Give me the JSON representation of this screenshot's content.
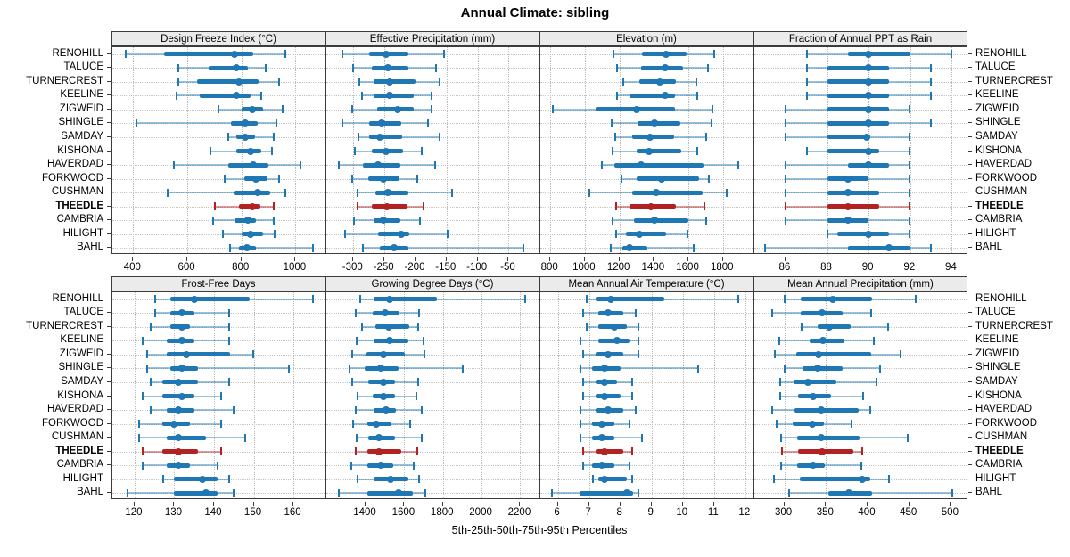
{
  "title": "Annual Climate: sibling",
  "xlabel": "5th-25th-50th-75th-95th Percentiles",
  "highlight_site": "THEEDLE",
  "colors": {
    "series": "#1f77b4",
    "series_light": "rgba(31,119,180,0.45)",
    "highlight": "#b22222",
    "highlight_light": "rgba(178,34,34,0.45)",
    "strip_bg": "#ebebeb",
    "panel_border": "#3c3c3c",
    "grid": "#bdbdbd"
  },
  "chart_data": {
    "type": "percentile-interval dotplot (trellis, 2 rows x 4 cols)",
    "percentiles": [
      5,
      25,
      50,
      75,
      95
    ],
    "legend_note": "each row: thin line = 5th-95th, thick bar = 25th-75th, dot = 50th percentile",
    "sites": [
      "RENOHILL",
      "TALUCE",
      "TURNERCREST",
      "KEELINE",
      "ZIGWEID",
      "SHINGLE",
      "SAMDAY",
      "KISHONA",
      "HAVERDAD",
      "FORKWOOD",
      "CUSHMAN",
      "THEEDLE",
      "CAMBRIA",
      "HILIGHT",
      "BAHL"
    ],
    "panels": [
      {
        "title": "Design Freeze Index (°C)",
        "grid_row": 0,
        "grid_col": 0,
        "xlim": [
          323,
          1114
        ],
        "ticks": [
          400,
          600,
          800,
          1000
        ],
        "tick_labels": [
          "400",
          "600",
          "800",
          "1000"
        ],
        "values": [
          [
            370,
            515,
            775,
            845,
            965
          ],
          [
            565,
            680,
            780,
            825,
            890
          ],
          [
            565,
            635,
            790,
            865,
            940
          ],
          [
            560,
            645,
            780,
            835,
            875
          ],
          [
            715,
            800,
            840,
            880,
            955
          ],
          [
            410,
            760,
            815,
            860,
            930
          ],
          [
            750,
            780,
            815,
            850,
            920
          ],
          [
            685,
            780,
            835,
            875,
            915
          ],
          [
            550,
            750,
            845,
            900,
            1020
          ],
          [
            735,
            810,
            855,
            895,
            940
          ],
          [
            525,
            770,
            860,
            905,
            965
          ],
          [
            700,
            790,
            840,
            870,
            920
          ],
          [
            695,
            775,
            825,
            855,
            920
          ],
          [
            730,
            800,
            835,
            880,
            925
          ],
          [
            755,
            790,
            820,
            855,
            1065
          ]
        ]
      },
      {
        "title": "Effective Precipitation (mm)",
        "grid_row": 0,
        "grid_col": 1,
        "xlim": [
          -343.5,
          1
        ],
        "ticks": [
          -300,
          -250,
          -200,
          -150,
          -100,
          -50
        ],
        "tick_labels": [
          "-300",
          "-250",
          "-200",
          "-150",
          "-100",
          "-50"
        ],
        "values": [
          [
            -319,
            -274,
            -248,
            -211,
            -153
          ],
          [
            -301,
            -270,
            -245,
            -211,
            -166
          ],
          [
            -291,
            -268,
            -241,
            -200,
            -161
          ],
          [
            -287,
            -267,
            -241,
            -203,
            -174
          ],
          [
            -302,
            -261,
            -228,
            -203,
            -174
          ],
          [
            -319,
            -275,
            -255,
            -223,
            -179
          ],
          [
            -293,
            -274,
            -258,
            -222,
            -161
          ],
          [
            -299,
            -270,
            -248,
            -220,
            -189
          ],
          [
            -324,
            -284,
            -260,
            -224,
            -167
          ],
          [
            -303,
            -276,
            -252,
            -226,
            -196
          ],
          [
            -294,
            -265,
            -244,
            -212,
            -140
          ],
          [
            -294,
            -270,
            -246,
            -213,
            -187
          ],
          [
            -300,
            -268,
            -251,
            -224,
            -192
          ],
          [
            -314,
            -260,
            -223,
            -210,
            -148
          ],
          [
            -285,
            -258,
            -234,
            -212,
            -25
          ]
        ]
      },
      {
        "title": "Elevation (m)",
        "grid_row": 0,
        "grid_col": 2,
        "xlim": [
          742,
          1982
        ],
        "ticks": [
          800,
          1000,
          1200,
          1400,
          1600,
          1800
        ],
        "tick_labels": [
          "800",
          "1000",
          "1200",
          "1400",
          "1600",
          "1800"
        ],
        "values": [
          [
            1165,
            1330,
            1470,
            1590,
            1750
          ],
          [
            1185,
            1325,
            1465,
            1570,
            1715
          ],
          [
            1220,
            1315,
            1435,
            1525,
            1650
          ],
          [
            1185,
            1260,
            1465,
            1520,
            1655
          ],
          [
            810,
            1060,
            1300,
            1520,
            1740
          ],
          [
            1155,
            1305,
            1405,
            1555,
            1735
          ],
          [
            1175,
            1275,
            1380,
            1515,
            1705
          ],
          [
            1160,
            1300,
            1370,
            1560,
            1655
          ],
          [
            1095,
            1170,
            1325,
            1690,
            1890
          ],
          [
            1210,
            1300,
            1445,
            1660,
            1720
          ],
          [
            1025,
            1275,
            1415,
            1680,
            1825
          ],
          [
            1180,
            1260,
            1385,
            1525,
            1695
          ],
          [
            1160,
            1285,
            1405,
            1600,
            1705
          ],
          [
            1180,
            1240,
            1315,
            1470,
            1595
          ],
          [
            1150,
            1215,
            1260,
            1360,
            1635
          ]
        ]
      },
      {
        "title": "Fraction of Annual PPT as Rain",
        "grid_row": 0,
        "grid_col": 3,
        "xlim": [
          84.5,
          94.8
        ],
        "ticks": [
          86,
          88,
          90,
          92,
          94
        ],
        "tick_labels": [
          "86",
          "88",
          "90",
          "92",
          "94"
        ],
        "values": [
          [
            87,
            89,
            90,
            92,
            94
          ],
          [
            87,
            88,
            90,
            91,
            93
          ],
          [
            87,
            88,
            90,
            91,
            93
          ],
          [
            87,
            88,
            90,
            91,
            93
          ],
          [
            86,
            88,
            90,
            91,
            92
          ],
          [
            86,
            88,
            90,
            91,
            93
          ],
          [
            86,
            88,
            89.9,
            90.1,
            92
          ],
          [
            87,
            88,
            90,
            90.5,
            92
          ],
          [
            86,
            89,
            90,
            91,
            92
          ],
          [
            86,
            88,
            89,
            90,
            92
          ],
          [
            86,
            88,
            89,
            90.5,
            92
          ],
          [
            86,
            88,
            89,
            90.5,
            92
          ],
          [
            86,
            88,
            89,
            90,
            92
          ],
          [
            88,
            88.5,
            90,
            91,
            92
          ],
          [
            85,
            89,
            91,
            92,
            93
          ]
        ]
      },
      {
        "title": "Frost-Free Days",
        "grid_row": 1,
        "grid_col": 0,
        "xlim": [
          114.4,
          168.3
        ],
        "ticks": [
          120,
          130,
          140,
          150,
          160
        ],
        "tick_labels": [
          "120",
          "130",
          "140",
          "150",
          "160"
        ],
        "values": [
          [
            125,
            129,
            135,
            149,
            165
          ],
          [
            125,
            129,
            132,
            135,
            144
          ],
          [
            124,
            129,
            132,
            134,
            144
          ],
          [
            122,
            128,
            132,
            135,
            144
          ],
          [
            123,
            128,
            133,
            144,
            150
          ],
          [
            123,
            129,
            132,
            136,
            159
          ],
          [
            124,
            127,
            131,
            136,
            144
          ],
          [
            122,
            127,
            132,
            135,
            142
          ],
          [
            124,
            128,
            131,
            135,
            145
          ],
          [
            121,
            127,
            130,
            134,
            142
          ],
          [
            121,
            128,
            131,
            138,
            148
          ],
          [
            122,
            127,
            131,
            136,
            142
          ],
          [
            122,
            128,
            131,
            134,
            141
          ],
          [
            127,
            130,
            137,
            141,
            144
          ],
          [
            118,
            130,
            138,
            141,
            145
          ]
        ]
      },
      {
        "title": "Growing Degree Days (°C)",
        "grid_row": 1,
        "grid_col": 1,
        "xlim": [
          1197,
          2304
        ],
        "ticks": [
          1400,
          1600,
          1800,
          2000,
          2200
        ],
        "tick_labels": [
          "1400",
          "1600",
          "1800",
          "2000",
          "2200"
        ],
        "values": [
          [
            1370,
            1440,
            1525,
            1770,
            2230
          ],
          [
            1345,
            1435,
            1500,
            1575,
            1680
          ],
          [
            1380,
            1450,
            1520,
            1625,
            1675
          ],
          [
            1350,
            1440,
            1525,
            1620,
            1700
          ],
          [
            1330,
            1405,
            1490,
            1605,
            1705
          ],
          [
            1315,
            1395,
            1480,
            1570,
            1905
          ],
          [
            1330,
            1415,
            1490,
            1550,
            1675
          ],
          [
            1355,
            1435,
            1490,
            1550,
            1665
          ],
          [
            1345,
            1440,
            1505,
            1555,
            1695
          ],
          [
            1335,
            1410,
            1455,
            1535,
            1635
          ],
          [
            1350,
            1415,
            1470,
            1550,
            1695
          ],
          [
            1345,
            1410,
            1470,
            1585,
            1670
          ],
          [
            1325,
            1410,
            1480,
            1545,
            1650
          ],
          [
            1355,
            1440,
            1530,
            1620,
            1680
          ],
          [
            1260,
            1410,
            1570,
            1645,
            1710
          ]
        ]
      },
      {
        "title": "Mean Annual Air Temperature (°C)",
        "grid_row": 1,
        "grid_col": 2,
        "xlim": [
          5.44,
          12.29
        ],
        "ticks": [
          6,
          7,
          8,
          9,
          10,
          11,
          12
        ],
        "tick_labels": [
          "6",
          "7",
          "8",
          "9",
          "10",
          "11",
          "12"
        ],
        "values": [
          [
            6.9,
            7.2,
            7.7,
            9.4,
            11.8
          ],
          [
            6.8,
            7.3,
            7.6,
            8.1,
            8.5
          ],
          [
            6.9,
            7.3,
            7.8,
            8.2,
            8.6
          ],
          [
            6.7,
            7.3,
            7.9,
            8.3,
            8.6
          ],
          [
            6.8,
            7.2,
            7.6,
            8.1,
            8.6
          ],
          [
            6.7,
            7.1,
            7.5,
            8.0,
            10.5
          ],
          [
            6.8,
            7.2,
            7.5,
            7.9,
            8.4
          ],
          [
            6.8,
            7.2,
            7.5,
            8.0,
            8.4
          ],
          [
            6.7,
            7.2,
            7.6,
            8.1,
            8.5
          ],
          [
            6.7,
            7.1,
            7.4,
            7.8,
            8.3
          ],
          [
            6.7,
            7.1,
            7.4,
            7.8,
            8.7
          ],
          [
            6.8,
            7.2,
            7.5,
            8.1,
            8.4
          ],
          [
            6.8,
            7.1,
            7.4,
            7.8,
            8.3
          ],
          [
            7.1,
            7.3,
            7.5,
            8.2,
            8.4
          ],
          [
            5.8,
            6.7,
            8.2,
            8.4,
            8.6
          ]
        ]
      },
      {
        "title": "Mean Annual Precipitation (mm)",
        "grid_row": 1,
        "grid_col": 3,
        "xlim": [
          264,
          521
        ],
        "ticks": [
          300,
          350,
          400,
          450,
          500
        ],
        "tick_labels": [
          "300",
          "350",
          "400",
          "450",
          "500"
        ],
        "values": [
          [
            300,
            320,
            358,
            405,
            458
          ],
          [
            285,
            320,
            345,
            370,
            405
          ],
          [
            320,
            340,
            354,
            380,
            425
          ],
          [
            293,
            330,
            346,
            372,
            408
          ],
          [
            288,
            314,
            341,
            404,
            440
          ],
          [
            300,
            322,
            340,
            370,
            415
          ],
          [
            295,
            311,
            328,
            362,
            411
          ],
          [
            294,
            317,
            335,
            356,
            395
          ],
          [
            285,
            312,
            344,
            389,
            404
          ],
          [
            290,
            310,
            334,
            348,
            381
          ],
          [
            296,
            315,
            344,
            390,
            449
          ],
          [
            297,
            316,
            345,
            383,
            394
          ],
          [
            296,
            315,
            335,
            349,
            393
          ],
          [
            287,
            319,
            394,
            403,
            426
          ],
          [
            305,
            353,
            377,
            405,
            502
          ]
        ]
      }
    ]
  }
}
